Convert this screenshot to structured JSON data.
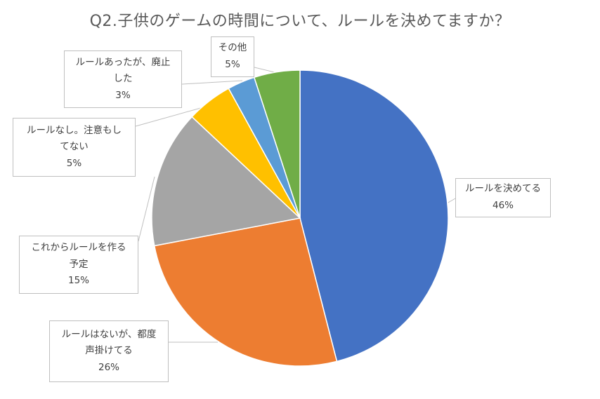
{
  "chart_data": {
    "type": "pie",
    "title": "Q2.子供のゲームの時間について、ルールを決めてますか？",
    "start_angle_deg": 0,
    "direction": "clockwise",
    "slices": [
      {
        "label_lines": [
          "ルールを決めてる"
        ],
        "value": 46,
        "value_label": "46%",
        "color": "#4472C4"
      },
      {
        "label_lines": [
          "ルールはないが、都度",
          "声掛けてる"
        ],
        "value": 26,
        "value_label": "26%",
        "color": "#ED7D31"
      },
      {
        "label_lines": [
          "これからルールを作る",
          "予定"
        ],
        "value": 15,
        "value_label": "15%",
        "color": "#A5A5A5"
      },
      {
        "label_lines": [
          "ルールなし。注意もし",
          "てない"
        ],
        "value": 5,
        "value_label": "5%",
        "color": "#FFC000"
      },
      {
        "label_lines": [
          "ルールあったが、廃止",
          "した"
        ],
        "value": 3,
        "value_label": "3%",
        "color": "#5B9BD5"
      },
      {
        "label_lines": [
          "その他"
        ],
        "value": 5,
        "value_label": "5%",
        "color": "#70AD47"
      }
    ]
  }
}
